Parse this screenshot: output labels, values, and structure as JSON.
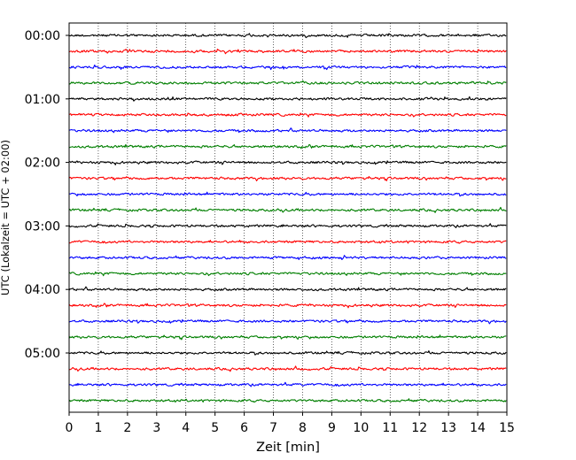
{
  "chart_data": {
    "type": "line",
    "subtype": "seismogram-helicorder",
    "xlabel": "Zeit  [min]",
    "ylabel": "UTC (Lokalzeit = UTC + 02:00)",
    "x_range": [
      0,
      15
    ],
    "x_ticks": [
      "0",
      "1",
      "2",
      "3",
      "4",
      "5",
      "6",
      "7",
      "8",
      "9",
      "10",
      "11",
      "12",
      "13",
      "14",
      "15"
    ],
    "y_tick_labels": [
      "00:00",
      "01:00",
      "02:00",
      "03:00",
      "04:00",
      "05:00"
    ],
    "trace_interval_min": 15,
    "trace_count": 24,
    "trace_colors": [
      "#000000",
      "#ff0000",
      "#0000ff",
      "#007f00"
    ],
    "vertical_grid": "dotted",
    "horizontal_grid": false
  }
}
